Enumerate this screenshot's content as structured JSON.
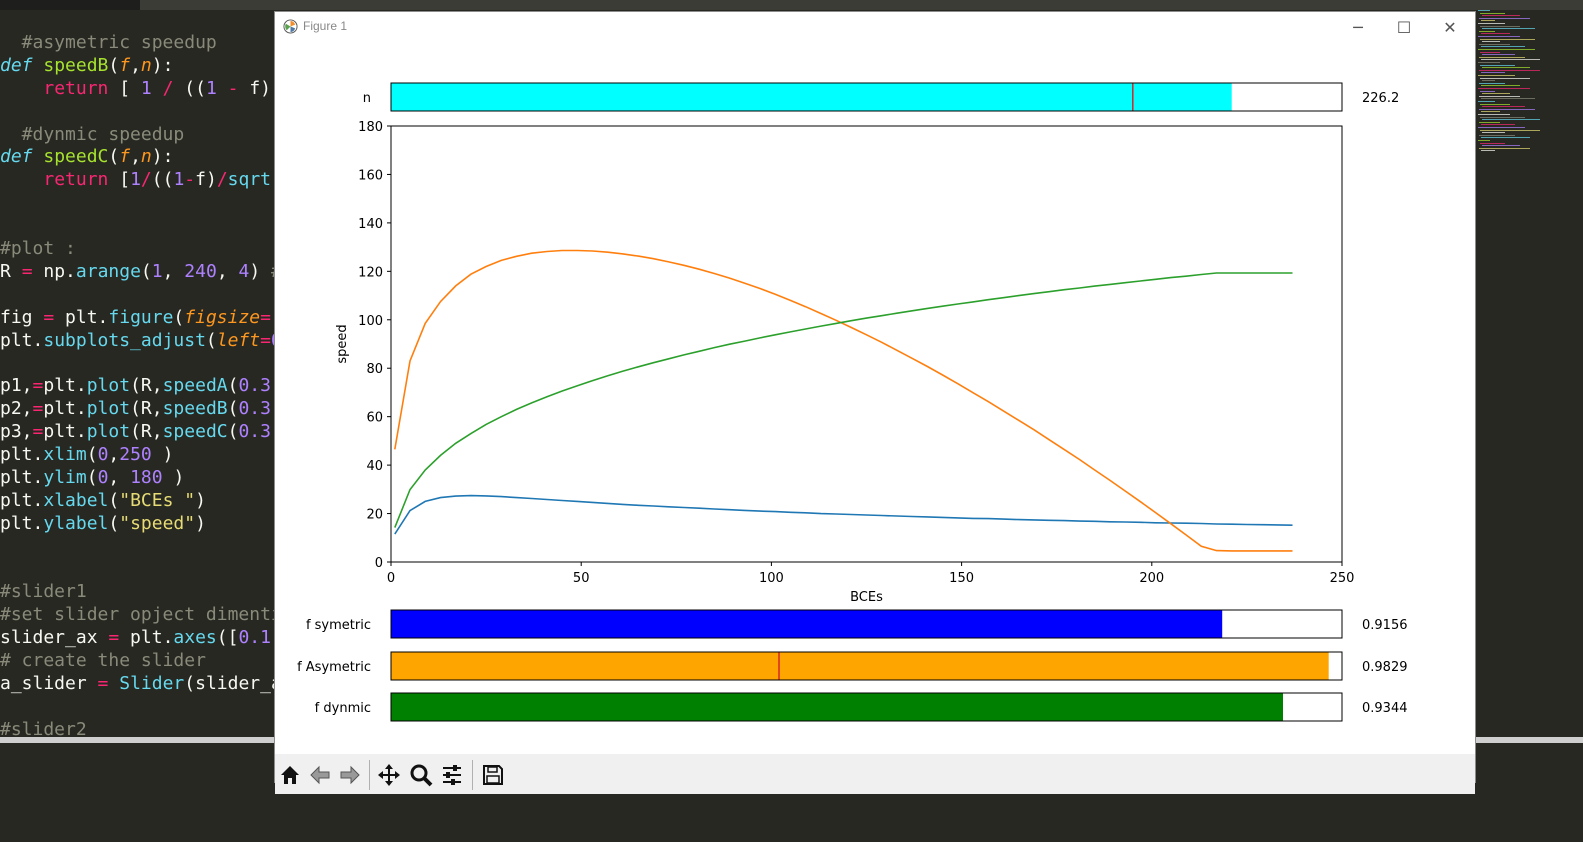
{
  "editor": {
    "lines": [
      {
        "segments": [
          {
            "t": "  #asymetric speedup",
            "c": "c-cm"
          }
        ]
      },
      {
        "segments": [
          {
            "t": "def",
            "c": "c-kw"
          },
          {
            "t": " ",
            "c": ""
          },
          {
            "t": "speedB",
            "c": "c-fn"
          },
          {
            "t": "(",
            "c": ""
          },
          {
            "t": "f",
            "c": "c-arg"
          },
          {
            "t": ",",
            "c": ""
          },
          {
            "t": "n",
            "c": "c-arg"
          },
          {
            "t": "):",
            "c": ""
          }
        ]
      },
      {
        "segments": [
          {
            "t": "    ",
            "c": ""
          },
          {
            "t": "return",
            "c": "c-ret"
          },
          {
            "t": " [ ",
            "c": ""
          },
          {
            "t": "1",
            "c": "c-num"
          },
          {
            "t": " ",
            "c": ""
          },
          {
            "t": "/",
            "c": "c-ret"
          },
          {
            "t": " ((",
            "c": ""
          },
          {
            "t": "1",
            "c": "c-num"
          },
          {
            "t": " ",
            "c": ""
          },
          {
            "t": "-",
            "c": "c-ret"
          },
          {
            "t": " f)",
            "c": ""
          }
        ]
      },
      {
        "segments": [
          {
            "t": "",
            "c": ""
          }
        ]
      },
      {
        "segments": [
          {
            "t": "  #dynmic speedup",
            "c": "c-cm"
          }
        ]
      },
      {
        "segments": [
          {
            "t": "def",
            "c": "c-kw"
          },
          {
            "t": " ",
            "c": ""
          },
          {
            "t": "speedC",
            "c": "c-fn"
          },
          {
            "t": "(",
            "c": ""
          },
          {
            "t": "f",
            "c": "c-arg"
          },
          {
            "t": ",",
            "c": ""
          },
          {
            "t": "n",
            "c": "c-arg"
          },
          {
            "t": "):",
            "c": ""
          }
        ]
      },
      {
        "segments": [
          {
            "t": "    ",
            "c": ""
          },
          {
            "t": "return",
            "c": "c-ret"
          },
          {
            "t": " [",
            "c": ""
          },
          {
            "t": "1",
            "c": "c-num"
          },
          {
            "t": "/",
            "c": "c-ret"
          },
          {
            "t": "((",
            "c": ""
          },
          {
            "t": "1",
            "c": "c-num"
          },
          {
            "t": "-",
            "c": "c-ret"
          },
          {
            "t": "f)",
            "c": ""
          },
          {
            "t": "/",
            "c": "c-ret"
          },
          {
            "t": "sqrt",
            "c": "c-bi"
          }
        ]
      },
      {
        "segments": [
          {
            "t": "",
            "c": ""
          }
        ]
      },
      {
        "segments": [
          {
            "t": "",
            "c": ""
          }
        ]
      },
      {
        "segments": [
          {
            "t": "#plot :",
            "c": "c-cm"
          }
        ]
      },
      {
        "segments": [
          {
            "t": "R ",
            "c": ""
          },
          {
            "t": "=",
            "c": "c-ret"
          },
          {
            "t": " np.",
            "c": ""
          },
          {
            "t": "arange",
            "c": "c-bi"
          },
          {
            "t": "(",
            "c": ""
          },
          {
            "t": "1",
            "c": "c-num"
          },
          {
            "t": ", ",
            "c": ""
          },
          {
            "t": "240",
            "c": "c-num"
          },
          {
            "t": ", ",
            "c": ""
          },
          {
            "t": "4",
            "c": "c-num"
          },
          {
            "t": ") ",
            "c": ""
          },
          {
            "t": "#",
            "c": "c-cm"
          }
        ]
      },
      {
        "segments": [
          {
            "t": "",
            "c": ""
          }
        ]
      },
      {
        "segments": [
          {
            "t": "fig ",
            "c": ""
          },
          {
            "t": "=",
            "c": "c-ret"
          },
          {
            "t": " plt.",
            "c": ""
          },
          {
            "t": "figure",
            "c": "c-bi"
          },
          {
            "t": "(",
            "c": ""
          },
          {
            "t": "figsize",
            "c": "c-arg"
          },
          {
            "t": "=",
            "c": "c-ret"
          },
          {
            "t": "(",
            "c": ""
          }
        ]
      },
      {
        "segments": [
          {
            "t": "plt.",
            "c": ""
          },
          {
            "t": "subplots_adjust",
            "c": "c-bi"
          },
          {
            "t": "(",
            "c": ""
          },
          {
            "t": "left",
            "c": "c-arg"
          },
          {
            "t": "=",
            "c": "c-ret"
          },
          {
            "t": "0",
            "c": "c-num"
          }
        ]
      },
      {
        "segments": [
          {
            "t": "",
            "c": ""
          }
        ]
      },
      {
        "segments": [
          {
            "t": "p1,",
            "c": ""
          },
          {
            "t": "=",
            "c": "c-ret"
          },
          {
            "t": "plt.",
            "c": ""
          },
          {
            "t": "plot",
            "c": "c-bi"
          },
          {
            "t": "(R,",
            "c": ""
          },
          {
            "t": "speedA",
            "c": "c-bi"
          },
          {
            "t": "(",
            "c": ""
          },
          {
            "t": "0.3",
            "c": "c-num"
          },
          {
            "t": ",",
            "c": ""
          }
        ]
      },
      {
        "segments": [
          {
            "t": "p2,",
            "c": ""
          },
          {
            "t": "=",
            "c": "c-ret"
          },
          {
            "t": "plt.",
            "c": ""
          },
          {
            "t": "plot",
            "c": "c-bi"
          },
          {
            "t": "(R,",
            "c": ""
          },
          {
            "t": "speedB",
            "c": "c-bi"
          },
          {
            "t": "(",
            "c": ""
          },
          {
            "t": "0.3",
            "c": "c-num"
          },
          {
            "t": ",",
            "c": ""
          }
        ]
      },
      {
        "segments": [
          {
            "t": "p3,",
            "c": ""
          },
          {
            "t": "=",
            "c": "c-ret"
          },
          {
            "t": "plt.",
            "c": ""
          },
          {
            "t": "plot",
            "c": "c-bi"
          },
          {
            "t": "(R,",
            "c": ""
          },
          {
            "t": "speedC",
            "c": "c-bi"
          },
          {
            "t": "(",
            "c": ""
          },
          {
            "t": "0.3",
            "c": "c-num"
          },
          {
            "t": ",",
            "c": ""
          }
        ]
      },
      {
        "segments": [
          {
            "t": "plt.",
            "c": ""
          },
          {
            "t": "xlim",
            "c": "c-bi"
          },
          {
            "t": "(",
            "c": ""
          },
          {
            "t": "0",
            "c": "c-num"
          },
          {
            "t": ",",
            "c": ""
          },
          {
            "t": "250",
            "c": "c-num"
          },
          {
            "t": " )",
            "c": ""
          }
        ]
      },
      {
        "segments": [
          {
            "t": "plt.",
            "c": ""
          },
          {
            "t": "ylim",
            "c": "c-bi"
          },
          {
            "t": "(",
            "c": ""
          },
          {
            "t": "0",
            "c": "c-num"
          },
          {
            "t": ", ",
            "c": ""
          },
          {
            "t": "180",
            "c": "c-num"
          },
          {
            "t": " )",
            "c": ""
          }
        ]
      },
      {
        "segments": [
          {
            "t": "plt.",
            "c": ""
          },
          {
            "t": "xlabel",
            "c": "c-bi"
          },
          {
            "t": "(",
            "c": ""
          },
          {
            "t": "\"BCEs \"",
            "c": "c-str"
          },
          {
            "t": ")",
            "c": ""
          }
        ]
      },
      {
        "segments": [
          {
            "t": "plt.",
            "c": ""
          },
          {
            "t": "ylabel",
            "c": "c-bi"
          },
          {
            "t": "(",
            "c": ""
          },
          {
            "t": "\"speed\"",
            "c": "c-str"
          },
          {
            "t": ")",
            "c": ""
          }
        ]
      },
      {
        "segments": [
          {
            "t": "",
            "c": ""
          }
        ]
      },
      {
        "segments": [
          {
            "t": "",
            "c": ""
          }
        ]
      },
      {
        "segments": [
          {
            "t": "#slider1",
            "c": "c-cm"
          }
        ]
      },
      {
        "segments": [
          {
            "t": "#set slider opject dimenti",
            "c": "c-cm"
          }
        ]
      },
      {
        "segments": [
          {
            "t": "slider_ax ",
            "c": ""
          },
          {
            "t": "=",
            "c": "c-ret"
          },
          {
            "t": " plt.",
            "c": ""
          },
          {
            "t": "axes",
            "c": "c-bi"
          },
          {
            "t": "([",
            "c": ""
          },
          {
            "t": "0.1",
            "c": "c-num"
          },
          {
            "t": ",",
            "c": ""
          }
        ]
      },
      {
        "segments": [
          {
            "t": "# create the slider",
            "c": "c-cm"
          }
        ]
      },
      {
        "segments": [
          {
            "t": "a_slider ",
            "c": ""
          },
          {
            "t": "=",
            "c": "c-ret"
          },
          {
            "t": " ",
            "c": ""
          },
          {
            "t": "Slider",
            "c": "c-bi"
          },
          {
            "t": "(slider_a",
            "c": ""
          }
        ]
      },
      {
        "segments": [
          {
            "t": "",
            "c": ""
          }
        ]
      },
      {
        "segments": [
          {
            "t": "#slider2",
            "c": "c-cm"
          }
        ]
      }
    ]
  },
  "window": {
    "title": "Figure 1",
    "minimize_glyph": "─",
    "maximize_glyph": "☐",
    "close_glyph": "✕"
  },
  "chart_data": {
    "type": "line",
    "title": "",
    "xlabel": "BCEs",
    "ylabel": "speed",
    "xlim": [
      0,
      250
    ],
    "ylim": [
      0,
      180
    ],
    "xticks": [
      0,
      50,
      100,
      150,
      200,
      250
    ],
    "yticks": [
      0,
      20,
      40,
      60,
      80,
      100,
      120,
      140,
      160,
      180
    ],
    "grid": false,
    "x": [
      1,
      5,
      9,
      13,
      17,
      21,
      25,
      29,
      33,
      37,
      41,
      45,
      49,
      53,
      57,
      61,
      65,
      69,
      73,
      77,
      81,
      85,
      89,
      93,
      97,
      101,
      105,
      109,
      113,
      117,
      121,
      125,
      129,
      133,
      137,
      141,
      145,
      149,
      153,
      157,
      161,
      165,
      169,
      173,
      177,
      181,
      185,
      189,
      193,
      197,
      201,
      205,
      209,
      213,
      217,
      221,
      225,
      229,
      233,
      237
    ],
    "series": [
      {
        "color": "#1f77b4",
        "values": [
          11.5,
          21.2,
          25.0,
          26.6,
          27.2,
          27.4,
          27.3,
          27.0,
          26.6,
          26.2,
          25.8,
          25.4,
          25.0,
          24.6,
          24.2,
          23.8,
          23.4,
          23.1,
          22.8,
          22.5,
          22.2,
          21.9,
          21.6,
          21.3,
          21.0,
          20.8,
          20.5,
          20.3,
          20.0,
          19.8,
          19.6,
          19.4,
          19.2,
          19.0,
          18.8,
          18.6,
          18.4,
          18.2,
          18.0,
          17.9,
          17.7,
          17.5,
          17.4,
          17.2,
          17.1,
          16.9,
          16.8,
          16.6,
          16.5,
          16.4,
          16.2,
          16.1,
          16.0,
          15.9,
          15.7,
          15.6,
          15.5,
          15.4,
          15.3,
          15.2
        ]
      },
      {
        "color": "#ff7f0e",
        "values": [
          46.5,
          83.0,
          98.5,
          107.5,
          114.0,
          118.8,
          122.0,
          124.5,
          126.2,
          127.5,
          128.2,
          128.6,
          128.6,
          128.4,
          127.9,
          127.2,
          126.3,
          125.2,
          123.9,
          122.5,
          120.9,
          119.1,
          117.2,
          115.1,
          112.9,
          110.5,
          108.0,
          105.4,
          102.6,
          99.8,
          96.8,
          93.8,
          90.7,
          87.4,
          84.1,
          80.7,
          77.2,
          73.6,
          69.9,
          66.2,
          62.4,
          58.5,
          54.6,
          50.5,
          46.4,
          42.3,
          38.0,
          33.7,
          29.3,
          24.9,
          20.4,
          15.8,
          11.2,
          6.5,
          4.7,
          4.6,
          4.6,
          4.6,
          4.6,
          4.6
        ]
      },
      {
        "color": "#2ca02c",
        "values": [
          14.2,
          29.9,
          38.0,
          44.0,
          49.0,
          53.0,
          56.8,
          60.0,
          63.0,
          65.7,
          68.2,
          70.6,
          72.8,
          74.9,
          76.9,
          78.8,
          80.6,
          82.3,
          83.9,
          85.5,
          87.0,
          88.5,
          89.9,
          91.2,
          92.5,
          93.8,
          95.0,
          96.2,
          97.4,
          98.5,
          99.6,
          100.7,
          101.7,
          102.7,
          103.7,
          104.7,
          105.6,
          106.5,
          107.4,
          108.3,
          109.1,
          110.0,
          110.8,
          111.6,
          112.4,
          113.1,
          113.9,
          114.6,
          115.3,
          116.0,
          116.7,
          117.4,
          118.0,
          118.7,
          119.3,
          119.3,
          119.3,
          119.3,
          119.3,
          119.3
        ]
      }
    ]
  },
  "sliders": {
    "n": {
      "label": "n",
      "value_text": "226.2",
      "fraction": 0.884,
      "marker_fraction": 0.78,
      "color": "#00ffff"
    },
    "f_symetric": {
      "label": "f symetric",
      "value_text": "0.9156",
      "fraction": 0.874,
      "color": "#0000ff"
    },
    "f_asymetric": {
      "label": "f Asymetric",
      "value_text": "0.9829",
      "fraction": 0.986,
      "marker_fraction": 0.408,
      "color": "#ffa500"
    },
    "f_dynmic": {
      "label": "f dynmic",
      "value_text": "0.9344",
      "fraction": 0.938,
      "color": "#008000"
    }
  },
  "toolbar": {
    "buttons": [
      "home-icon",
      "back-icon",
      "forward-icon",
      "pan-icon",
      "zoom-icon",
      "configure-icon",
      "save-icon"
    ]
  }
}
